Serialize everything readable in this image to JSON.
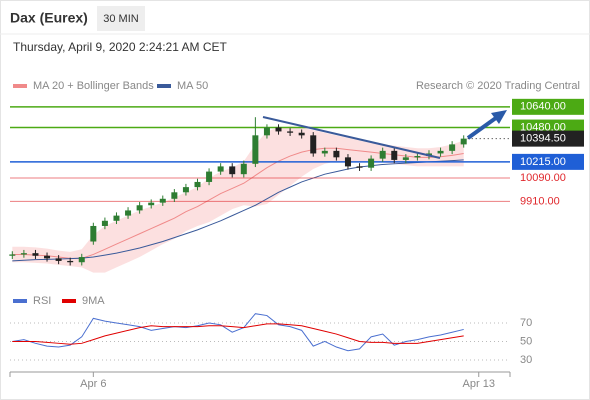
{
  "header": {
    "title": "Dax (Eurex)",
    "interval": "30 MIN",
    "timestamp": "Thursday, April 9, 2020 2:24:21 AM CET"
  },
  "chart_data": [
    {
      "type": "candlestick",
      "credit": "Research © 2020 Trading Central",
      "xlim": [
        -0.2,
        43
      ],
      "ylim": [
        9380,
        10770
      ],
      "up_color": "#2e7d32",
      "down_color": "#222222",
      "open": [
        9490,
        9500,
        9510,
        9490,
        9470,
        9450,
        9440,
        9600,
        9720,
        9760,
        9800,
        9840,
        9880,
        9900,
        9930,
        9980,
        10020,
        10060,
        10140,
        10180,
        10120,
        10200,
        10420,
        10480,
        10450,
        10440,
        10420,
        10280,
        10300,
        10250,
        10180,
        10170,
        10240,
        10300,
        10230,
        10250,
        10260,
        10280,
        10300,
        10350
      ],
      "high": [
        9525,
        9535,
        9535,
        9515,
        9495,
        9475,
        9505,
        9745,
        9785,
        9825,
        9865,
        9905,
        9925,
        9955,
        10005,
        10045,
        10085,
        10165,
        10205,
        10205,
        10225,
        10560,
        10505,
        10505,
        10475,
        10465,
        10445,
        10325,
        10325,
        10275,
        10205,
        10265,
        10325,
        10325,
        10275,
        10285,
        10305,
        10325,
        10375,
        10420
      ],
      "low": [
        9465,
        9475,
        9465,
        9445,
        9425,
        9415,
        9415,
        9575,
        9695,
        9735,
        9775,
        9815,
        9855,
        9875,
        9905,
        9955,
        9995,
        10035,
        10115,
        10095,
        10095,
        10175,
        10395,
        10425,
        10415,
        10395,
        10255,
        10255,
        10225,
        10155,
        10145,
        10145,
        10215,
        10205,
        10205,
        10225,
        10235,
        10255,
        10275,
        10325
      ],
      "close": [
        9500,
        9510,
        9490,
        9470,
        9450,
        9440,
        9480,
        9720,
        9760,
        9800,
        9840,
        9880,
        9900,
        9930,
        9980,
        10020,
        10060,
        10140,
        10180,
        10120,
        10200,
        10420,
        10480,
        10450,
        10440,
        10420,
        10280,
        10300,
        10250,
        10180,
        10170,
        10240,
        10300,
        10230,
        10250,
        10260,
        10280,
        10300,
        10350,
        10394.5
      ],
      "overlays": [
        {
          "name": "MA 20 + Bollinger Bands",
          "color": "#f08a8a",
          "band_color": "#fbd3d3",
          "values": [
            9500,
            9500,
            9495,
            9490,
            9480,
            9470,
            9470,
            9500,
            9540,
            9580,
            9620,
            9660,
            9700,
            9740,
            9780,
            9830,
            9870,
            9920,
            9970,
            10010,
            10050,
            10110,
            10170,
            10220,
            10260,
            10290,
            10310,
            10320,
            10320,
            10310,
            10300,
            10290,
            10280,
            10270,
            10260,
            10250,
            10250,
            10255,
            10265,
            10280
          ],
          "upper": [
            9560,
            9560,
            9555,
            9545,
            9530,
            9520,
            9540,
            9650,
            9720,
            9760,
            9800,
            9840,
            9870,
            9900,
            9940,
            9980,
            10020,
            10090,
            10140,
            10170,
            10220,
            10350,
            10450,
            10480,
            10490,
            10480,
            10460,
            10440,
            10420,
            10400,
            10380,
            10360,
            10350,
            10340,
            10330,
            10320,
            10320,
            10330,
            10350,
            10380
          ],
          "lower": [
            9440,
            9440,
            9435,
            9430,
            9420,
            9410,
            9400,
            9360,
            9360,
            9400,
            9440,
            9480,
            9530,
            9580,
            9620,
            9680,
            9720,
            9750,
            9800,
            9850,
            9880,
            9870,
            9890,
            9960,
            10030,
            10100,
            10160,
            10200,
            10220,
            10220,
            10220,
            10220,
            10210,
            10200,
            10190,
            10180,
            10180,
            10180,
            10180,
            10180
          ]
        },
        {
          "name": "MA 50",
          "color": "#3a5a9a",
          "values": [
            9450,
            9455,
            9460,
            9462,
            9465,
            9468,
            9472,
            9480,
            9495,
            9510,
            9530,
            9550,
            9575,
            9600,
            9630,
            9660,
            9690,
            9725,
            9760,
            9800,
            9840,
            9880,
            9930,
            9980,
            10020,
            10060,
            10090,
            10120,
            10140,
            10160,
            10175,
            10185,
            10195,
            10200,
            10205,
            10210,
            10215,
            10220,
            10225,
            10230
          ]
        }
      ],
      "levels": [
        {
          "value": 10640,
          "label": "10640.00",
          "color": "#4caa14",
          "style": "box",
          "line": "solid"
        },
        {
          "value": 10480,
          "label": "10480.00",
          "color": "#4caa14",
          "style": "box",
          "line": "solid"
        },
        {
          "value": 10394.5,
          "label": "10394.50",
          "color": "#222222",
          "style": "box",
          "line": "dotted"
        },
        {
          "value": 10215,
          "label": "10215.00",
          "color": "#1f5fd6",
          "style": "box",
          "line": "solid"
        },
        {
          "value": 10090,
          "label": "10090.00",
          "color": "#e0282d",
          "style": "text",
          "line": "solid"
        },
        {
          "value": 9910,
          "label": "9910.00",
          "color": "#e0282d",
          "style": "text",
          "line": "solid"
        }
      ]
    },
    {
      "type": "line",
      "xlim": [
        -0.2,
        43
      ],
      "ylim": [
        17,
        84
      ],
      "yticks": [
        70,
        50,
        30
      ],
      "grid": true,
      "xticks": [
        {
          "value": 7,
          "label": "Apr 6"
        },
        {
          "value": 40.3,
          "label": "Apr 13"
        }
      ],
      "series": [
        {
          "name": "RSI",
          "color": "#4a6fd0",
          "values": [
            50,
            52,
            48,
            45,
            44,
            46,
            55,
            75,
            72,
            70,
            68,
            66,
            62,
            64,
            66,
            65,
            67,
            70,
            68,
            60,
            65,
            80,
            78,
            68,
            66,
            62,
            45,
            50,
            44,
            40,
            42,
            55,
            58,
            46,
            50,
            52,
            55,
            57,
            60,
            63
          ]
        },
        {
          "name": "9MA",
          "color": "#e00000",
          "values": [
            50,
            50,
            50,
            49,
            48,
            47,
            48,
            52,
            56,
            59,
            62,
            65,
            67,
            66,
            66,
            66,
            66,
            67,
            67,
            66,
            65,
            67,
            69,
            69,
            68,
            67,
            64,
            61,
            58,
            54,
            50,
            49,
            49,
            48,
            48,
            48,
            50,
            52,
            54,
            56
          ]
        }
      ]
    }
  ]
}
